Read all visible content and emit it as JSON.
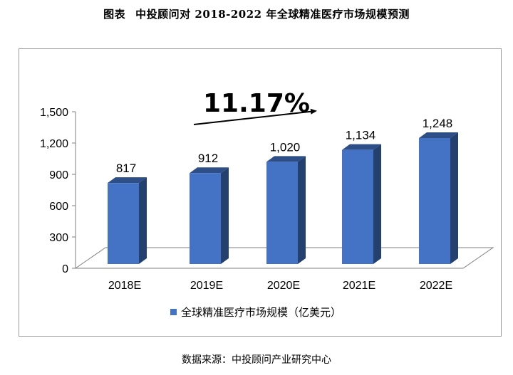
{
  "header": {
    "tag": "图表",
    "title": "中投顾问对 2018-2022 年全球精准医疗市场规模预测"
  },
  "annotation": {
    "cagr": "11.17%"
  },
  "source": "数据来源：中投顾问产业研究中心",
  "colors": {
    "bar_front": "#4472C4",
    "bar_side": "#24406F",
    "bar_top": "#2E4E88",
    "floor": "#FFFFFF"
  },
  "chart_data": {
    "type": "bar",
    "categories": [
      "2018E",
      "2019E",
      "2020E",
      "2021E",
      "2022E"
    ],
    "series": [
      {
        "name": "全球精准医疗市场规模（亿美元）",
        "values": [
          817,
          912,
          1020,
          1134,
          1248
        ]
      }
    ],
    "data_labels": [
      "817",
      "912",
      "1,020",
      "1,134",
      "1,248"
    ],
    "yticks": [
      "0",
      "300",
      "600",
      "900",
      "1,200",
      "1,500"
    ],
    "ylim": [
      0,
      1500
    ],
    "grid": false,
    "legend": "bottom",
    "style": "3d"
  }
}
